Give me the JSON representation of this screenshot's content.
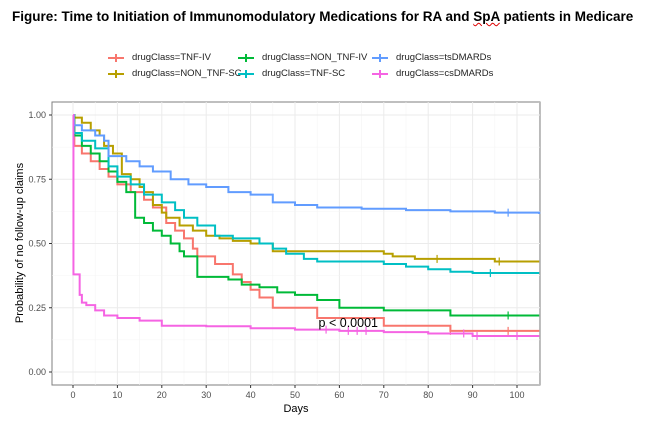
{
  "figure_title_prefix": "Figure: Time to Initiation of Immunomodulatory Medications for RA and ",
  "figure_title_squiggle": "SpA",
  "figure_title_suffix": " patients in Medicare",
  "chart_data": {
    "type": "line",
    "subtype": "kaplan-meier-step",
    "title": "Time to Initiation of Immunomodulatory Medications for RA and SpA patients in Medicare",
    "xlabel": "Days",
    "ylabel": "Probability of no follow-up claims",
    "xlim": [
      -5,
      105
    ],
    "ylim": [
      -0.04,
      1.04
    ],
    "xticks": [
      0,
      10,
      20,
      30,
      40,
      50,
      60,
      70,
      80,
      90,
      100
    ],
    "yticks": [
      0.0,
      0.25,
      0.5,
      0.75,
      1.0
    ],
    "ytick_labels": [
      "0.00",
      "0.25",
      "0.50",
      "0.75",
      "1.00"
    ],
    "grid": true,
    "legend_position": "top",
    "annotation": "p < 0.0001",
    "annotation_at": [
      62,
      0.19
    ],
    "series": [
      {
        "name": "drugClass=TNF-IV",
        "color": "#F8766D",
        "x": [
          0,
          0.3,
          2,
          4,
          6,
          8,
          10,
          13,
          16,
          18,
          21,
          23,
          25,
          27,
          28,
          32,
          36,
          38,
          40,
          42,
          45,
          55,
          57,
          70,
          85,
          105
        ],
        "y": [
          1.0,
          0.88,
          0.85,
          0.82,
          0.79,
          0.76,
          0.73,
          0.7,
          0.67,
          0.64,
          0.58,
          0.55,
          0.52,
          0.48,
          0.45,
          0.42,
          0.38,
          0.35,
          0.32,
          0.29,
          0.25,
          0.21,
          0.21,
          0.18,
          0.16,
          0.16
        ],
        "censor_x": [
          85,
          98
        ]
      },
      {
        "name": "drugClass=NON_TNF-SC",
        "color": "#B79F00",
        "x": [
          0,
          0.2,
          2,
          4,
          6,
          7,
          9,
          11,
          13,
          15,
          16,
          18,
          20,
          21,
          24,
          27,
          30,
          33,
          36,
          40,
          45,
          70,
          72,
          77,
          85,
          95,
          105
        ],
        "y": [
          1.0,
          0.99,
          0.97,
          0.94,
          0.92,
          0.88,
          0.85,
          0.77,
          0.75,
          0.72,
          0.7,
          0.65,
          0.62,
          0.6,
          0.57,
          0.55,
          0.53,
          0.52,
          0.51,
          0.5,
          0.47,
          0.46,
          0.45,
          0.44,
          0.44,
          0.43,
          0.43
        ],
        "censor_x": [
          82,
          96
        ]
      },
      {
        "name": "drugClass=NON_TNF-IV",
        "color": "#00BA38",
        "x": [
          0,
          0.3,
          2,
          4,
          6,
          8,
          10,
          12,
          14,
          16,
          18,
          20,
          22,
          24,
          25,
          28,
          35,
          38,
          42,
          46,
          50,
          55,
          60,
          70,
          85,
          105
        ],
        "y": [
          1.0,
          0.92,
          0.88,
          0.85,
          0.82,
          0.78,
          0.74,
          0.7,
          0.6,
          0.58,
          0.55,
          0.53,
          0.5,
          0.47,
          0.45,
          0.37,
          0.36,
          0.34,
          0.33,
          0.31,
          0.3,
          0.28,
          0.25,
          0.24,
          0.22,
          0.22
        ],
        "censor_x": [
          98
        ]
      },
      {
        "name": "drugClass=TNF-SC",
        "color": "#00BFC4",
        "x": [
          0,
          0.2,
          2,
          5,
          8,
          10,
          13,
          16,
          20,
          23,
          25,
          28,
          32,
          36,
          42,
          45,
          48,
          52,
          55,
          70,
          75,
          80,
          85,
          90,
          105
        ],
        "y": [
          1.0,
          0.93,
          0.9,
          0.87,
          0.8,
          0.76,
          0.73,
          0.69,
          0.66,
          0.63,
          0.6,
          0.57,
          0.53,
          0.52,
          0.5,
          0.48,
          0.46,
          0.44,
          0.43,
          0.42,
          0.41,
          0.4,
          0.39,
          0.385,
          0.385
        ],
        "censor_x": [
          94
        ]
      },
      {
        "name": "drugClass=tsDMARDs",
        "color": "#619CFF",
        "x": [
          0,
          0.2,
          2,
          5,
          7,
          8,
          12,
          15,
          18,
          22,
          26,
          30,
          35,
          40,
          45,
          50,
          55,
          65,
          75,
          85,
          95,
          105
        ],
        "y": [
          1.0,
          0.96,
          0.94,
          0.92,
          0.9,
          0.84,
          0.82,
          0.8,
          0.78,
          0.75,
          0.73,
          0.72,
          0.7,
          0.69,
          0.66,
          0.65,
          0.64,
          0.635,
          0.63,
          0.625,
          0.62,
          0.615
        ],
        "censor_x": [
          98
        ]
      },
      {
        "name": "drugClass=csDMARDs",
        "color": "#F564E3",
        "x": [
          0,
          0.1,
          1.5,
          2,
          3,
          5,
          7,
          10,
          15,
          20,
          30,
          40,
          50,
          60,
          70,
          80,
          90,
          105
        ],
        "y": [
          1.0,
          0.38,
          0.3,
          0.27,
          0.26,
          0.24,
          0.22,
          0.21,
          0.2,
          0.18,
          0.178,
          0.17,
          0.165,
          0.16,
          0.155,
          0.15,
          0.14,
          0.14
        ],
        "censor_x": [
          57,
          62,
          64,
          66,
          88,
          91,
          100
        ]
      }
    ]
  }
}
